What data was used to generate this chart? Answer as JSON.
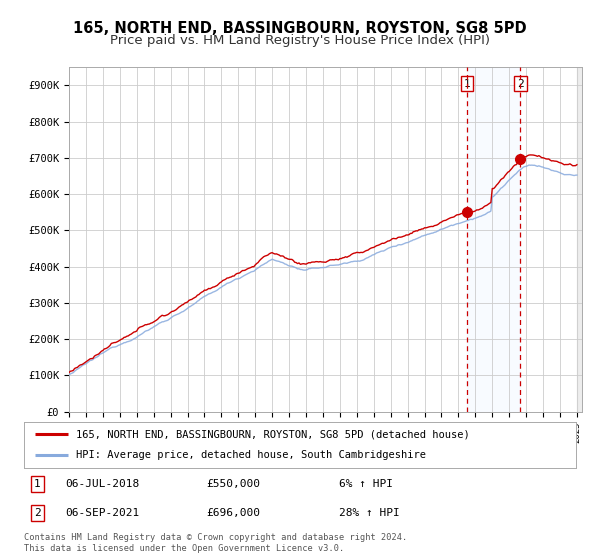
{
  "title": "165, NORTH END, BASSINGBOURN, ROYSTON, SG8 5PD",
  "subtitle": "Price paid vs. HM Land Registry's House Price Index (HPI)",
  "ylim": [
    0,
    950000
  ],
  "yticks": [
    0,
    100000,
    200000,
    300000,
    400000,
    500000,
    600000,
    700000,
    800000,
    900000
  ],
  "ytick_labels": [
    "£0",
    "£100K",
    "£200K",
    "£300K",
    "£400K",
    "£500K",
    "£600K",
    "£700K",
    "£800K",
    "£900K"
  ],
  "x_start_year": 1995,
  "x_end_year": 2025,
  "line1_color": "#cc0000",
  "line2_color": "#88aadd",
  "marker_color": "#cc0000",
  "shade_color": "#ddeeff",
  "dashed_line_color": "#cc0000",
  "transaction1_year_f": 2018.5,
  "transaction1_price": 550000,
  "transaction2_year_f": 2021.667,
  "transaction2_price": 696000,
  "legend_line1": "165, NORTH END, BASSINGBOURN, ROYSTON, SG8 5PD (detached house)",
  "legend_line2": "HPI: Average price, detached house, South Cambridgeshire",
  "table_row1": [
    "1",
    "06-JUL-2018",
    "£550,000",
    "6% ↑ HPI"
  ],
  "table_row2": [
    "2",
    "06-SEP-2021",
    "£696,000",
    "28% ↑ HPI"
  ],
  "footnote": "Contains HM Land Registry data © Crown copyright and database right 2024.\nThis data is licensed under the Open Government Licence v3.0.",
  "background_color": "#ffffff",
  "grid_color": "#cccccc",
  "title_fontsize": 10.5,
  "subtitle_fontsize": 9.5
}
